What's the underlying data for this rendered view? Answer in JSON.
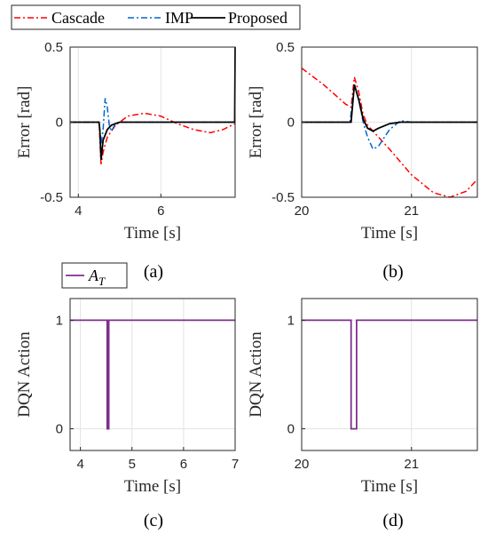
{
  "chart_data": [
    {
      "id": "a",
      "type": "line",
      "caption": "(a)",
      "xlabel": "Time [s]",
      "ylabel": "Error [rad]",
      "xlim": [
        3.8,
        7.8
      ],
      "ylim": [
        -0.5,
        0.5
      ],
      "xticks": [
        4,
        6
      ],
      "yticks": [
        -0.5,
        0,
        0.5
      ],
      "xtick_labels": [
        "4",
        "6"
      ],
      "ytick_labels": [
        "-0.5",
        "0",
        "0.5"
      ],
      "grid": true,
      "series": [
        {
          "name": "Cascade",
          "color": "#ff0000",
          "dash": "dashdot",
          "x": [
            3.8,
            4.5,
            4.52,
            4.55,
            4.6,
            4.7,
            4.9,
            5.2,
            5.6,
            6.0,
            6.4,
            6.8,
            7.2,
            7.5,
            7.8
          ],
          "y": [
            0,
            0,
            -0.1,
            -0.28,
            -0.2,
            -0.1,
            -0.02,
            0.04,
            0.06,
            0.04,
            -0.01,
            -0.05,
            -0.07,
            -0.05,
            -0.01
          ]
        },
        {
          "name": "IMP",
          "color": "#0066cc",
          "dash": "dashdot",
          "x": [
            3.8,
            4.5,
            4.55,
            4.6,
            4.65,
            4.7,
            4.75,
            4.8,
            4.9,
            5.0,
            7.8
          ],
          "y": [
            0,
            0,
            -0.15,
            -0.05,
            0.16,
            0.1,
            -0.02,
            -0.06,
            -0.01,
            0,
            0
          ]
        },
        {
          "name": "Proposed",
          "color": "#000000",
          "dash": "solid",
          "x": [
            3.8,
            4.5,
            4.52,
            4.55,
            4.6,
            4.7,
            4.8,
            5.0,
            7.79,
            7.8
          ],
          "y": [
            0,
            0,
            -0.05,
            -0.25,
            -0.12,
            -0.05,
            -0.02,
            0,
            0,
            0.5
          ]
        }
      ]
    },
    {
      "id": "b",
      "type": "line",
      "caption": "(b)",
      "xlabel": "Time [s]",
      "ylabel": "Error [rad]",
      "xlim": [
        20,
        21.6
      ],
      "ylim": [
        -0.5,
        0.5
      ],
      "xticks": [
        20,
        21
      ],
      "yticks": [
        -0.5,
        0,
        0.5
      ],
      "xtick_labels": [
        "20",
        "21"
      ],
      "ytick_labels": [
        "-0.5",
        "0",
        "0.5"
      ],
      "grid": true,
      "series": [
        {
          "name": "Cascade",
          "color": "#ff0000",
          "dash": "dashdot",
          "x": [
            20,
            20.2,
            20.4,
            20.45,
            20.48,
            20.52,
            20.56,
            20.6,
            20.8,
            21.0,
            21.2,
            21.35,
            21.5,
            21.6
          ],
          "y": [
            0.36,
            0.25,
            0.12,
            0.1,
            0.3,
            0.2,
            0.05,
            -0.02,
            -0.18,
            -0.35,
            -0.47,
            -0.5,
            -0.46,
            -0.38
          ]
        },
        {
          "name": "IMP",
          "color": "#0066cc",
          "dash": "dashdot",
          "x": [
            20,
            20.44,
            20.48,
            20.52,
            20.56,
            20.6,
            20.65,
            20.7,
            20.8,
            20.9,
            21.0,
            21.1,
            21.6
          ],
          "y": [
            0,
            0,
            0.25,
            0.15,
            0,
            -0.1,
            -0.18,
            -0.16,
            -0.05,
            0.01,
            0,
            0,
            0
          ]
        },
        {
          "name": "Proposed",
          "color": "#000000",
          "dash": "solid",
          "x": [
            20,
            20.45,
            20.48,
            20.52,
            20.56,
            20.6,
            20.65,
            20.7,
            20.8,
            20.9,
            21.0,
            21.6
          ],
          "y": [
            0,
            0,
            0.25,
            0.15,
            0.02,
            -0.04,
            -0.06,
            -0.04,
            -0.01,
            0,
            0,
            0
          ]
        }
      ]
    },
    {
      "id": "c",
      "type": "line",
      "caption": "(c)",
      "xlabel": "Time [s]",
      "ylabel": "DQN Action",
      "xlim": [
        3.8,
        7
      ],
      "ylim": [
        -0.2,
        1.2
      ],
      "xticks": [
        4,
        5,
        6,
        7
      ],
      "yticks": [
        0,
        1
      ],
      "xtick_labels": [
        "4",
        "5",
        "6",
        "7"
      ],
      "ytick_labels": [
        "0",
        "1"
      ],
      "grid": true,
      "series": [
        {
          "name": "A_T",
          "color": "#7e2f8e",
          "dash": "solid",
          "x": [
            3.8,
            4.52,
            4.52,
            4.55,
            4.55,
            7
          ],
          "y": [
            1,
            1,
            0,
            0,
            1,
            1
          ]
        }
      ]
    },
    {
      "id": "d",
      "type": "line",
      "caption": "(d)",
      "xlabel": "Time [s]",
      "ylabel": "DQN Action",
      "xlim": [
        20,
        21.6
      ],
      "ylim": [
        -0.2,
        1.2
      ],
      "xticks": [
        20,
        21
      ],
      "yticks": [
        0,
        1
      ],
      "xtick_labels": [
        "20",
        "21"
      ],
      "ytick_labels": [
        "0",
        "1"
      ],
      "grid": true,
      "series": [
        {
          "name": "A_T",
          "color": "#7e2f8e",
          "dash": "solid",
          "x": [
            20,
            20.45,
            20.45,
            20.5,
            20.5,
            21.6
          ],
          "y": [
            1,
            1,
            0,
            0,
            1,
            1
          ]
        }
      ]
    }
  ],
  "legend_top": {
    "entries": [
      {
        "label": "Cascade",
        "color": "#ff0000",
        "dash": "dashdot"
      },
      {
        "label": "IMP",
        "color": "#0066cc",
        "dash": "dashdot"
      },
      {
        "label": "Proposed",
        "color": "#000000",
        "dash": "solid"
      }
    ]
  },
  "legend_bottom": {
    "entries": [
      {
        "label": "A",
        "subscript": "T",
        "color": "#7e2f8e",
        "dash": "solid"
      }
    ]
  }
}
